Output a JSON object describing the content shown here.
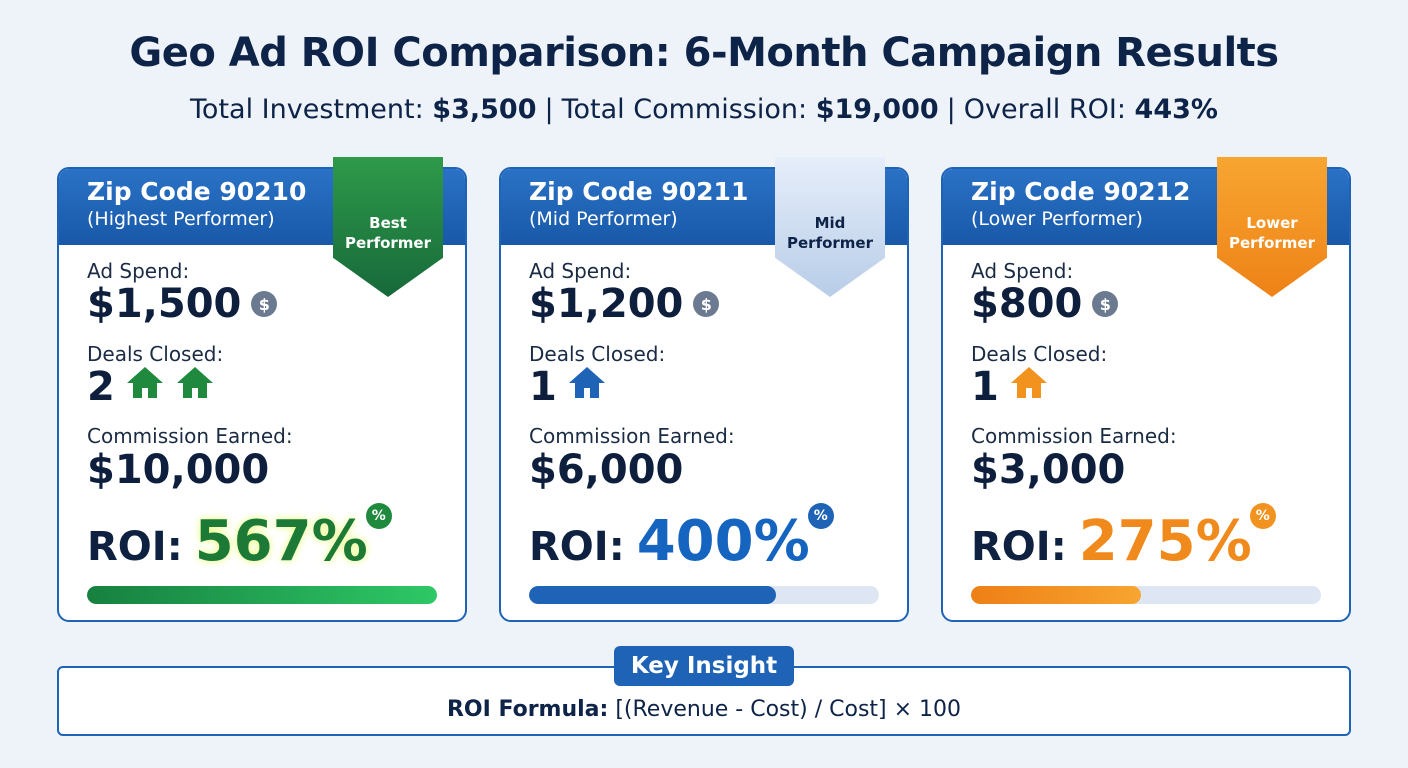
{
  "header": {
    "title": "Geo Ad ROI Comparison: 6-Month Campaign Results",
    "summary": [
      {
        "label": "Total Investment:",
        "value": "$3,500"
      },
      {
        "label": "Total Commission:",
        "value": "$19,000"
      },
      {
        "label": "Overall ROI:",
        "value": "443%"
      }
    ],
    "separator": "|"
  },
  "icons": {
    "coin": "$",
    "percent": "%"
  },
  "cards": [
    {
      "theme": "green",
      "title": "Zip Code 90210",
      "subtitle": "(Highest Performer)",
      "badge": "Best Performer",
      "ad_spend_label": "Ad Spend:",
      "ad_spend": "$1,500",
      "deals_label": "Deals Closed:",
      "deals": 2,
      "commission_label": "Commission Earned:",
      "commission": "$10,000",
      "roi_label": "ROI:",
      "roi": {
        "value": 567,
        "label": "567%"
      }
    },
    {
      "theme": "blue",
      "title": "Zip Code 90211",
      "subtitle": "(Mid Performer)",
      "badge": "Mid Performer",
      "ad_spend_label": "Ad Spend:",
      "ad_spend": "$1,200",
      "deals_label": "Deals Closed:",
      "deals": 1,
      "commission_label": "Commission Earned:",
      "commission": "$6,000",
      "roi_label": "ROI:",
      "roi": {
        "value": 400,
        "label": "400%"
      }
    },
    {
      "theme": "orange",
      "title": "Zip Code 90212",
      "subtitle": "(Lower Performer)",
      "badge": "Lower Performer",
      "ad_spend_label": "Ad Spend:",
      "ad_spend": "$800",
      "deals_label": "Deals Closed:",
      "deals": 1,
      "commission_label": "Commission Earned:",
      "commission": "$3,000",
      "roi_label": "ROI:",
      "roi": {
        "value": 275,
        "label": "275%"
      }
    }
  ],
  "insight": {
    "title": "Key Insight",
    "formula_label": "ROI Formula:",
    "formula": "[(Revenue - Cost) / Cost] × 100"
  }
}
